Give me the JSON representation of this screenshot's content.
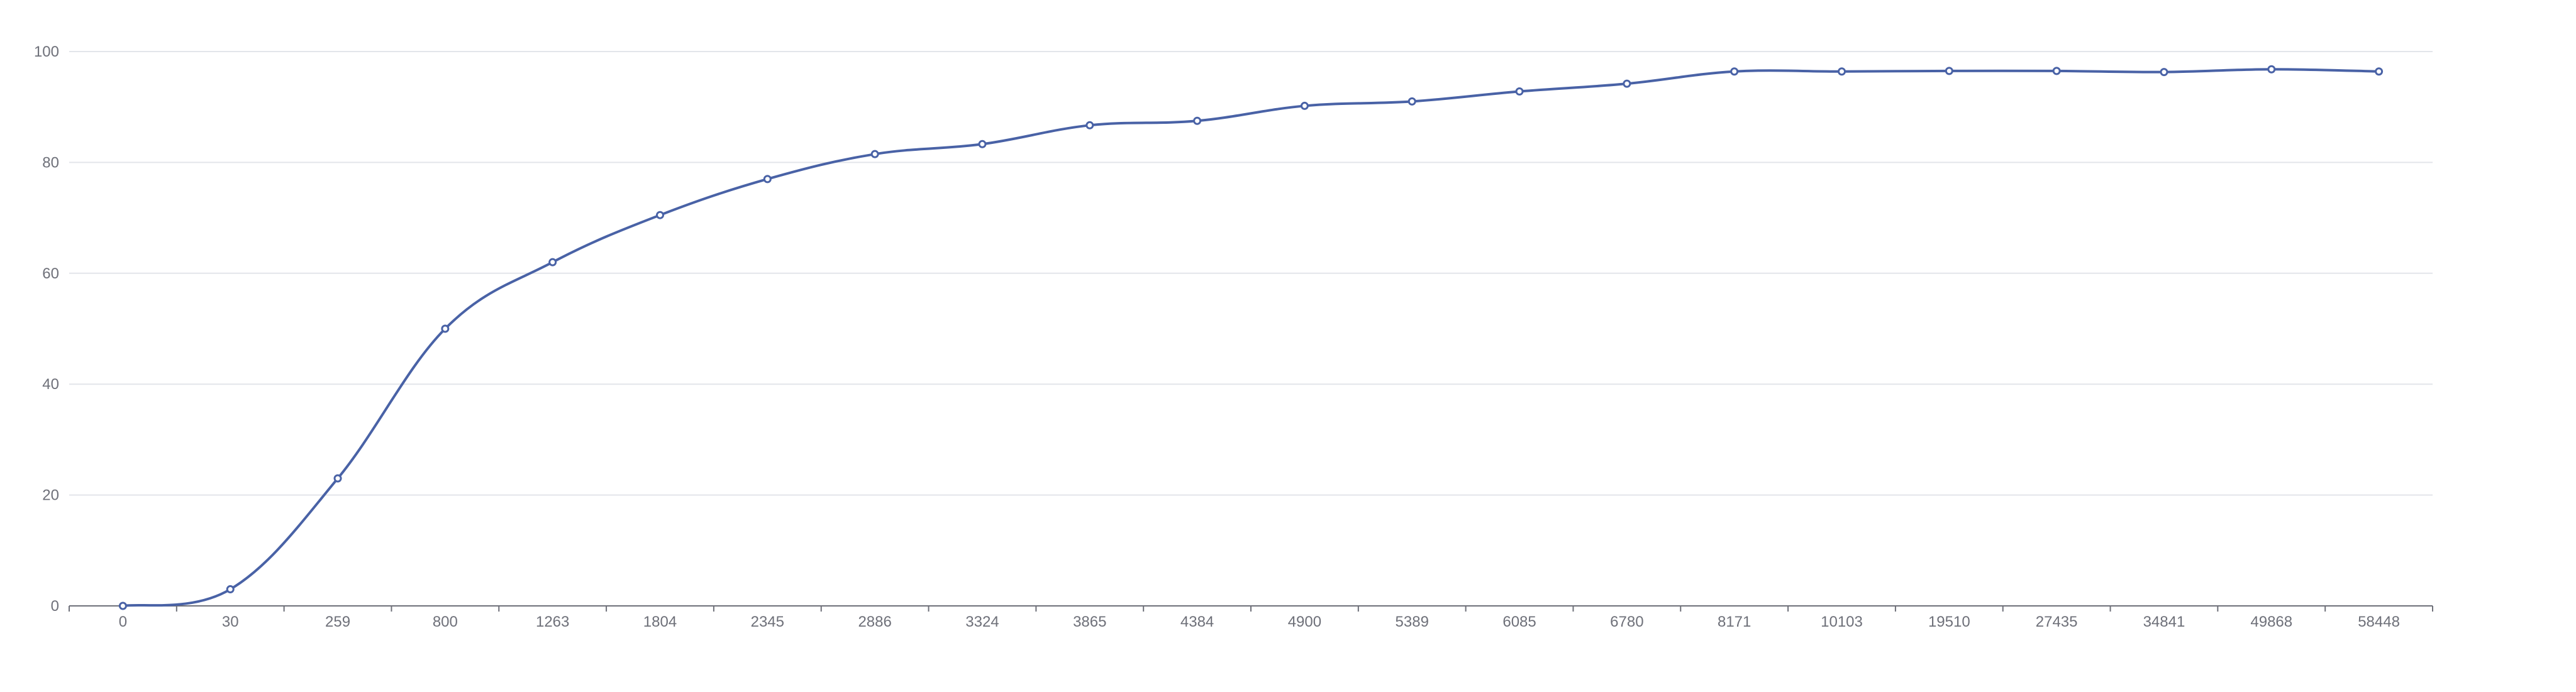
{
  "chart_data": {
    "type": "line",
    "smooth": true,
    "x": [
      "0",
      "30",
      "259",
      "800",
      "1263",
      "1804",
      "2345",
      "2886",
      "3324",
      "3865",
      "4384",
      "4900",
      "5389",
      "6085",
      "6780",
      "8171",
      "10103",
      "19510",
      "27435",
      "34841",
      "49868",
      "58448"
    ],
    "series": [
      {
        "values": [
          0,
          3,
          23,
          50,
          62,
          70.5,
          77,
          81.5,
          83.3,
          86.7,
          87.5,
          90.2,
          91,
          92.8,
          94.2,
          96.4,
          96.4,
          96.5,
          96.5,
          96.3,
          96.8,
          96.4
        ]
      }
    ],
    "yticks": [
      "0",
      "20",
      "40",
      "60",
      "80",
      "100"
    ],
    "ylim": [
      0,
      100
    ],
    "grid": true,
    "legend": "none",
    "colors": {
      "line": "#4962a6",
      "grid": "#e3e5ea",
      "axis": "#6e7079"
    }
  }
}
